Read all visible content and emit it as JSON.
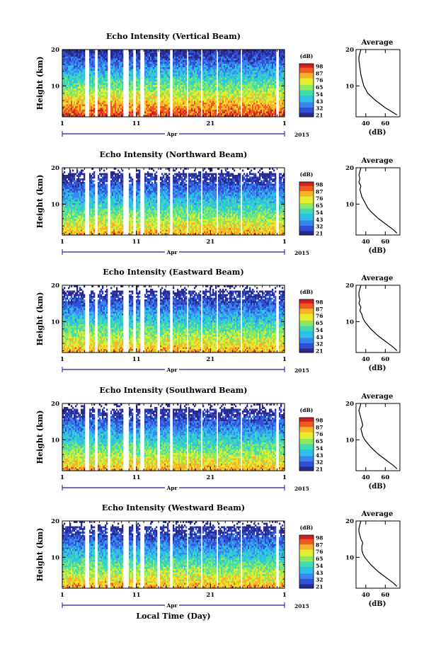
{
  "chart_data": [
    {
      "type": "heatmap",
      "title": "Echo Intensity (Vertical Beam)",
      "ylabel": "Height (km)",
      "y_ticks": [
        "10",
        "20"
      ],
      "ylim_km": [
        1.5,
        20
      ],
      "x_ticks": [
        "1",
        "11",
        "21",
        "1"
      ],
      "month_label": "Apr",
      "year_label": "2015",
      "colorbar": {
        "unit": "(dB)",
        "ticks": [
          "98",
          "87",
          "76",
          "65",
          "54",
          "43",
          "32",
          "21"
        ]
      },
      "average_profile": {
        "title": "Average",
        "xlabel": "(dB)",
        "x_ticks": [
          "40",
          "60"
        ],
        "y_ticks": [
          "10",
          "20"
        ],
        "xlim": [
          30,
          75
        ],
        "height_km": [
          2,
          3,
          4,
          5,
          6,
          7,
          8,
          9,
          10,
          11,
          12,
          13,
          14,
          15,
          16,
          17,
          18,
          19,
          20
        ],
        "db": [
          72,
          66,
          60,
          55,
          50,
          46,
          42,
          40,
          38,
          37,
          36,
          35,
          34.5,
          34,
          33.5,
          33,
          33,
          34,
          35
        ]
      }
    },
    {
      "type": "heatmap",
      "title": "Echo Intensity (Northward Beam)",
      "ylabel": "Height (km)",
      "y_ticks": [
        "10",
        "20"
      ],
      "x_ticks": [
        "1",
        "11",
        "21",
        "1"
      ],
      "month_label": "Apr",
      "year_label": "2015",
      "colorbar": {
        "unit": "(dB)",
        "ticks": [
          "98",
          "87",
          "76",
          "65",
          "54",
          "43",
          "32",
          "21"
        ]
      },
      "average_profile": {
        "title": "Average",
        "xlabel": "(dB)",
        "x_ticks": [
          "40",
          "60"
        ],
        "y_ticks": [
          "10",
          "20"
        ],
        "xlim": [
          30,
          75
        ],
        "height_km": [
          2,
          3,
          4,
          5,
          6,
          7,
          8,
          9,
          10,
          11,
          12,
          13,
          14,
          15,
          16,
          17,
          18,
          19,
          20
        ],
        "db": [
          72,
          68,
          63,
          58,
          53,
          49,
          45,
          42,
          40,
          38,
          36,
          35,
          34,
          35,
          33,
          34,
          33,
          34,
          35
        ]
      }
    },
    {
      "type": "heatmap",
      "title": "Echo Intensity (Eastward Beam)",
      "ylabel": "Height (km)",
      "y_ticks": [
        "10",
        "20"
      ],
      "x_ticks": [
        "1",
        "11",
        "21",
        "1"
      ],
      "month_label": "Apr",
      "year_label": "2015",
      "colorbar": {
        "unit": "(dB)",
        "ticks": [
          "98",
          "87",
          "76",
          "65",
          "54",
          "43",
          "32",
          "21"
        ]
      },
      "average_profile": {
        "title": "Average",
        "xlabel": "(dB)",
        "x_ticks": [
          "40",
          "60"
        ],
        "y_ticks": [
          "10",
          "20"
        ],
        "xlim": [
          30,
          75
        ],
        "height_km": [
          2,
          3,
          4,
          5,
          6,
          7,
          8,
          9,
          10,
          11,
          12,
          13,
          14,
          15,
          16,
          17,
          18,
          19,
          20
        ],
        "db": [
          72,
          68,
          63,
          58,
          53,
          49,
          45,
          42,
          39,
          37,
          36,
          34,
          35,
          33,
          34,
          33,
          33,
          34,
          35
        ]
      }
    },
    {
      "type": "heatmap",
      "title": "Echo Intensity (Southward Beam)",
      "ylabel": "Height (km)",
      "y_ticks": [
        "10",
        "20"
      ],
      "x_ticks": [
        "1",
        "11",
        "21",
        "1"
      ],
      "month_label": "Apr",
      "year_label": "2015",
      "colorbar": {
        "unit": "(dB)",
        "ticks": [
          "98",
          "87",
          "76",
          "65",
          "54",
          "43",
          "32",
          "21"
        ]
      },
      "average_profile": {
        "title": "Average",
        "xlabel": "(dB)",
        "x_ticks": [
          "40",
          "60"
        ],
        "y_ticks": [
          "10",
          "20"
        ],
        "xlim": [
          30,
          75
        ],
        "height_km": [
          2,
          3,
          4,
          5,
          6,
          7,
          8,
          9,
          10,
          11,
          12,
          13,
          14,
          15,
          16,
          17,
          18,
          19,
          20
        ],
        "db": [
          72,
          68,
          63,
          58,
          53,
          49,
          45,
          42,
          39,
          37,
          36,
          35,
          37,
          36,
          35,
          34,
          33,
          34,
          35
        ]
      }
    },
    {
      "type": "heatmap",
      "title": "Echo Intensity (Westward Beam)",
      "ylabel": "Height (km)",
      "y_ticks": [
        "10",
        "20"
      ],
      "x_ticks": [
        "1",
        "11",
        "21",
        "1"
      ],
      "month_label": "Apr",
      "year_label": "2015",
      "xlabel": "Local Time (Day)",
      "colorbar": {
        "unit": "(dB)",
        "ticks": [
          "98",
          "87",
          "76",
          "65",
          "54",
          "43",
          "32",
          "21"
        ]
      },
      "average_profile": {
        "title": "Average",
        "xlabel": "(dB)",
        "x_ticks": [
          "40",
          "60"
        ],
        "y_ticks": [
          "10",
          "20"
        ],
        "xlim": [
          30,
          75
        ],
        "height_km": [
          2,
          3,
          4,
          5,
          6,
          7,
          8,
          9,
          10,
          11,
          12,
          13,
          14,
          15,
          16,
          17,
          18,
          19,
          20
        ],
        "db": [
          72,
          68,
          63,
          58,
          53,
          49,
          45,
          42,
          39,
          37,
          36,
          36,
          37,
          35,
          34,
          33,
          33,
          34,
          35
        ]
      }
    }
  ],
  "colors": {
    "colormap": [
      "#2a2a8c",
      "#3050d8",
      "#3a86f0",
      "#2fc0e8",
      "#40dcb0",
      "#8ee860",
      "#e6ec30",
      "#f8b428",
      "#ee5a20",
      "#d02020"
    ],
    "axis": "#000000",
    "time_axis": "#1a1a9a"
  }
}
